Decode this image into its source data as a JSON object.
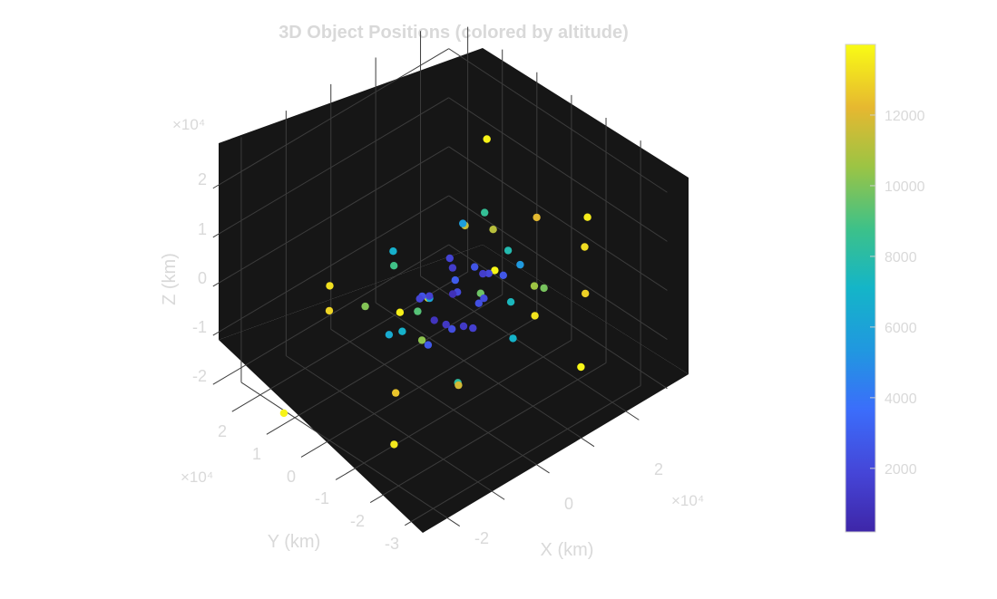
{
  "chart_data": {
    "type": "scatter",
    "title": "3D Object Positions (colored by altitude)",
    "xlabel": "X (km)",
    "ylabel": "Y (km)",
    "zlabel": "Z (km)",
    "axis_multiplier": "×10⁴",
    "xticks": [
      "-2",
      "0",
      "2"
    ],
    "yticks": [
      "2",
      "1",
      "0",
      "-1",
      "-2",
      "-3"
    ],
    "zticks": [
      "2",
      "1",
      "0",
      "-1",
      "-2"
    ],
    "colorbar_ticks": [
      "2000",
      "4000",
      "6000",
      "8000",
      "10000",
      "12000"
    ],
    "colorbar_range": [
      200,
      14000
    ],
    "colormap": "parula",
    "background": "#161616",
    "grid": true,
    "points": [
      {
        "x": 0.02,
        "y": -0.05,
        "z": 0.03,
        "alt": 800
      },
      {
        "x": 0.5,
        "y": 0.2,
        "z": 0.3,
        "alt": 1500
      },
      {
        "x": -0.4,
        "y": 0.3,
        "z": -0.2,
        "alt": 1200
      },
      {
        "x": 0.3,
        "y": -0.5,
        "z": 0.4,
        "alt": 1800
      },
      {
        "x": -0.2,
        "y": -0.3,
        "z": -0.5,
        "alt": 1000
      },
      {
        "x": 0.6,
        "y": 0.1,
        "z": -0.3,
        "alt": 2200
      },
      {
        "x": -0.6,
        "y": -0.2,
        "z": 0.2,
        "alt": 1900
      },
      {
        "x": 0.1,
        "y": 0.6,
        "z": 0.1,
        "alt": 2400
      },
      {
        "x": 0.2,
        "y": 0.3,
        "z": -0.6,
        "alt": 1600
      },
      {
        "x": -0.3,
        "y": 0.5,
        "z": 0.5,
        "alt": 2100
      },
      {
        "x": 0.7,
        "y": -0.3,
        "z": 0.1,
        "alt": 2600
      },
      {
        "x": -0.5,
        "y": 0.6,
        "z": -0.1,
        "alt": 2300
      },
      {
        "x": 0.4,
        "y": 0.5,
        "z": 0.5,
        "alt": 2000
      },
      {
        "x": -0.7,
        "y": 0.0,
        "z": 0.4,
        "alt": 2500
      },
      {
        "x": 0.0,
        "y": -0.7,
        "z": -0.3,
        "alt": 1700
      },
      {
        "x": 0.8,
        "y": 0.4,
        "z": 0.2,
        "alt": 2700
      },
      {
        "x": -0.1,
        "y": 0.1,
        "z": 0.7,
        "alt": 1400
      },
      {
        "x": 0.3,
        "y": -0.1,
        "z": -0.8,
        "alt": 1300
      },
      {
        "x": -0.8,
        "y": 0.3,
        "z": -0.4,
        "alt": 2800
      },
      {
        "x": 0.5,
        "y": -0.6,
        "z": -0.2,
        "alt": 2900
      },
      {
        "x": 1.1,
        "y": 0.5,
        "z": 0.3,
        "alt": 5500
      },
      {
        "x": -1.0,
        "y": 0.6,
        "z": 0.8,
        "alt": 6200
      },
      {
        "x": 0.9,
        "y": -0.9,
        "z": 0.6,
        "alt": 5800
      },
      {
        "x": -0.9,
        "y": -0.7,
        "z": -0.6,
        "alt": 6500
      },
      {
        "x": 0.4,
        "y": 1.2,
        "z": -0.5,
        "alt": 7000
      },
      {
        "x": -0.5,
        "y": -1.1,
        "z": 0.7,
        "alt": 6800
      },
      {
        "x": 1.2,
        "y": 0.1,
        "z": -0.7,
        "alt": 7400
      },
      {
        "x": -1.3,
        "y": 0.2,
        "z": 0.1,
        "alt": 6900
      },
      {
        "x": 0.6,
        "y": 0.8,
        "z": 1.0,
        "alt": 7800
      },
      {
        "x": -0.6,
        "y": 0.9,
        "z": -1.0,
        "alt": 8200
      },
      {
        "x": 1.0,
        "y": -0.4,
        "z": 1.0,
        "alt": 8500
      },
      {
        "x": -1.1,
        "y": -0.3,
        "z": 1.1,
        "alt": 8900
      },
      {
        "x": 0.2,
        "y": -1.3,
        "z": -1.0,
        "alt": 9300
      },
      {
        "x": -0.4,
        "y": 1.3,
        "z": 0.9,
        "alt": 9700
      },
      {
        "x": 1.4,
        "y": 0.8,
        "z": -0.2,
        "alt": 9900
      },
      {
        "x": -1.4,
        "y": 0.9,
        "z": 0.3,
        "alt": 10300
      },
      {
        "x": 0.8,
        "y": 1.3,
        "z": 0.4,
        "alt": 10600
      },
      {
        "x": -1.2,
        "y": -1.0,
        "z": 0.0,
        "alt": 10100
      },
      {
        "x": 1.5,
        "y": -0.8,
        "z": 0.2,
        "alt": 11200
      },
      {
        "x": 0.1,
        "y": 0.2,
        "z": 1.5,
        "alt": 11500
      },
      {
        "x": -0.2,
        "y": 0.4,
        "z": -1.5,
        "alt": 11800
      },
      {
        "x": 1.7,
        "y": 0.2,
        "z": 0.8,
        "alt": 12200
      },
      {
        "x": -1.6,
        "y": 0.4,
        "z": -0.9,
        "alt": 12600
      },
      {
        "x": 2.0,
        "y": 1.2,
        "z": 0.5,
        "alt": 13200
      },
      {
        "x": -2.1,
        "y": 1.0,
        "z": -1.4,
        "alt": 13500
      },
      {
        "x": 1.9,
        "y": -1.5,
        "z": 1.5,
        "alt": 13800
      },
      {
        "x": -1.8,
        "y": 1.6,
        "z": 1.7,
        "alt": 13600
      },
      {
        "x": 0.5,
        "y": -2.2,
        "z": -1.6,
        "alt": 13700
      },
      {
        "x": -0.7,
        "y": 2.1,
        "z": 1.9,
        "alt": 13900
      },
      {
        "x": 2.2,
        "y": -0.5,
        "z": -1.8,
        "alt": 13400
      },
      {
        "x": -2.3,
        "y": -0.6,
        "z": 1.2,
        "alt": 13300
      },
      {
        "x": 1.3,
        "y": 2.0,
        "z": -1.2,
        "alt": 13900
      },
      {
        "x": -1.0,
        "y": -2.3,
        "z": -0.8,
        "alt": 13000
      },
      {
        "x": 2.4,
        "y": 0.7,
        "z": -0.9,
        "alt": 12900
      },
      {
        "x": -2.4,
        "y": -1.8,
        "z": -1.9,
        "alt": 13800
      },
      {
        "x": 1.6,
        "y": 1.8,
        "z": 1.6,
        "alt": 13600
      }
    ]
  }
}
